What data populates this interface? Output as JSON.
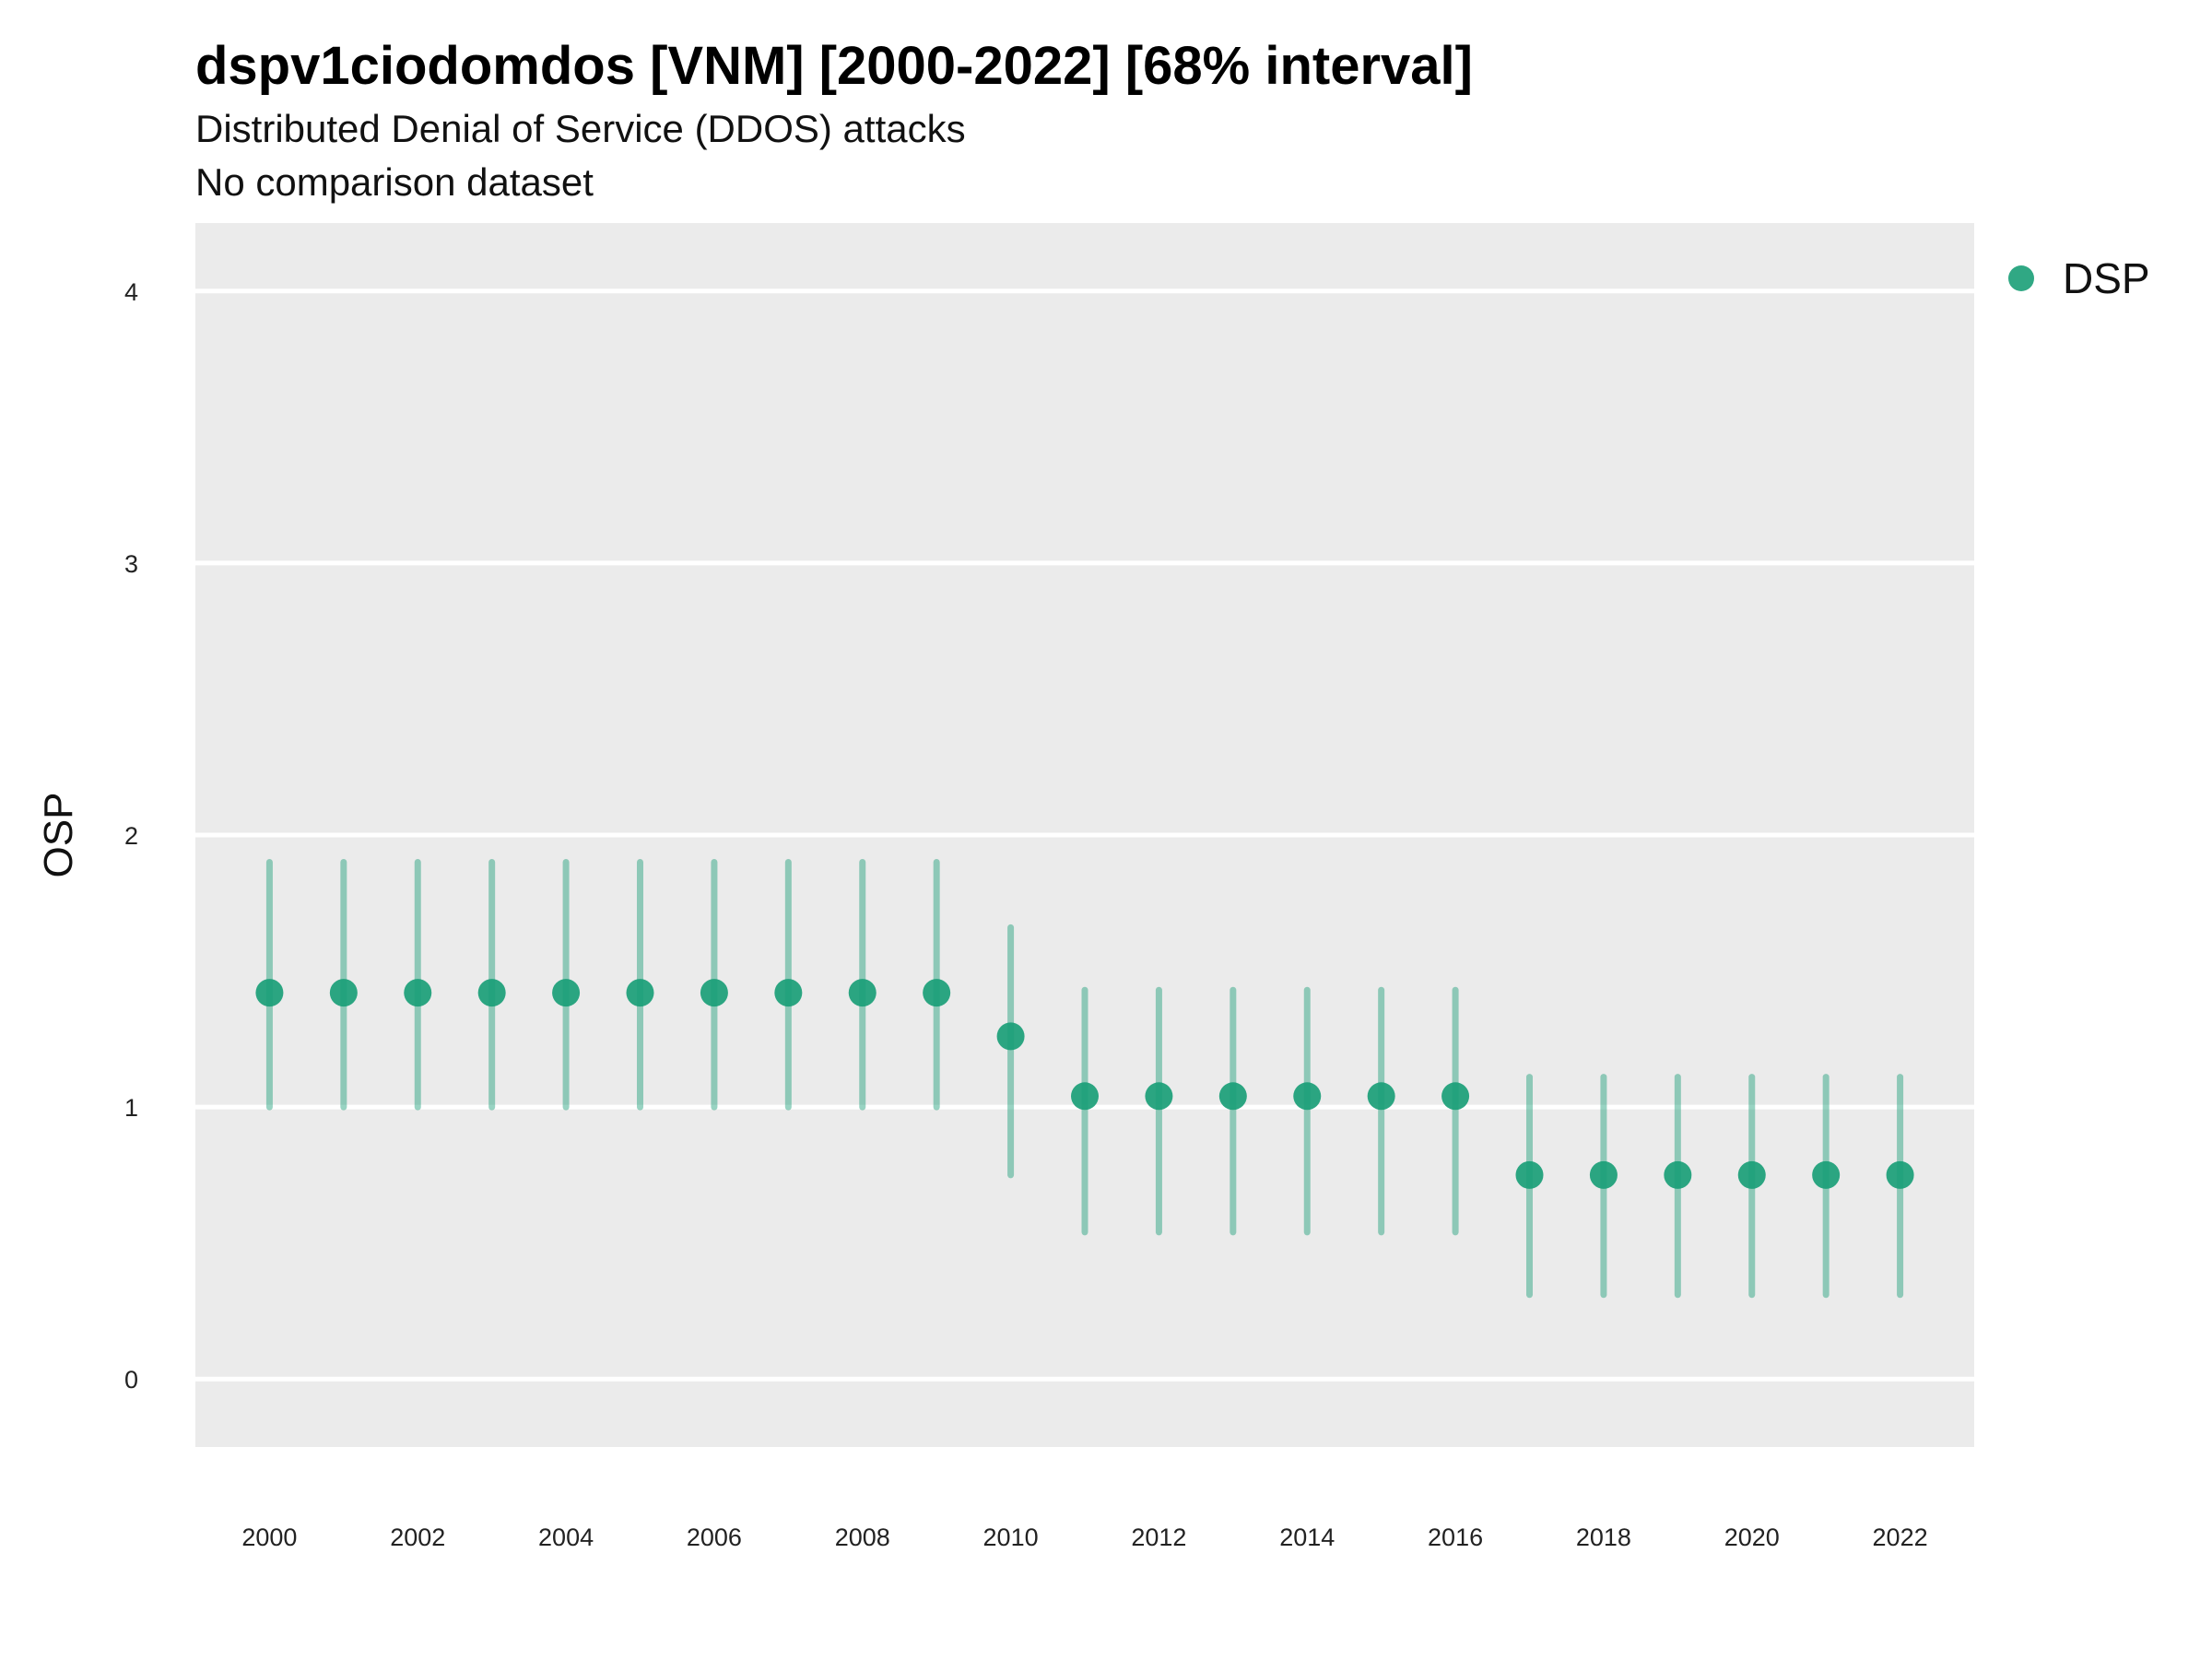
{
  "header": {
    "title": "dspv1ciodomdos [VNM] [2000-2022] [68% interval]",
    "subtitle": "Distributed Denial of Service (DDOS) attacks",
    "subtitle2": "No comparison dataset"
  },
  "chart_data": {
    "type": "scatter",
    "title": "dspv1ciodomdos [VNM] [2000-2022] [68% interval]",
    "ylabel": "OSP",
    "xlabel": "",
    "x": [
      2000,
      2001,
      2002,
      2003,
      2004,
      2005,
      2006,
      2007,
      2008,
      2009,
      2010,
      2011,
      2012,
      2013,
      2014,
      2015,
      2016,
      2017,
      2018,
      2019,
      2020,
      2021,
      2022
    ],
    "xlim": [
      1999,
      2023
    ],
    "x_ticks": [
      2000,
      2002,
      2004,
      2006,
      2008,
      2010,
      2012,
      2014,
      2016,
      2018,
      2020,
      2022
    ],
    "ylim": [
      -0.25,
      4.25
    ],
    "y_ticks": [
      0,
      1,
      2,
      3,
      4
    ],
    "grid": true,
    "legend_position": "right",
    "series": [
      {
        "name": "DSP",
        "color": "#1a9e77",
        "values": [
          1.42,
          1.42,
          1.42,
          1.42,
          1.42,
          1.42,
          1.42,
          1.42,
          1.42,
          1.42,
          1.26,
          1.04,
          1.04,
          1.04,
          1.04,
          1.04,
          1.04,
          0.75,
          0.75,
          0.75,
          0.75,
          0.75,
          0.75
        ],
        "lower": [
          1.0,
          1.0,
          1.0,
          1.0,
          1.0,
          1.0,
          1.0,
          1.0,
          1.0,
          1.0,
          0.75,
          0.54,
          0.54,
          0.54,
          0.54,
          0.54,
          0.54,
          0.31,
          0.31,
          0.31,
          0.31,
          0.31,
          0.31
        ],
        "upper": [
          1.9,
          1.9,
          1.9,
          1.9,
          1.9,
          1.9,
          1.9,
          1.9,
          1.9,
          1.9,
          1.66,
          1.43,
          1.43,
          1.43,
          1.43,
          1.43,
          1.43,
          1.11,
          1.11,
          1.11,
          1.11,
          1.11,
          1.11
        ]
      }
    ]
  }
}
